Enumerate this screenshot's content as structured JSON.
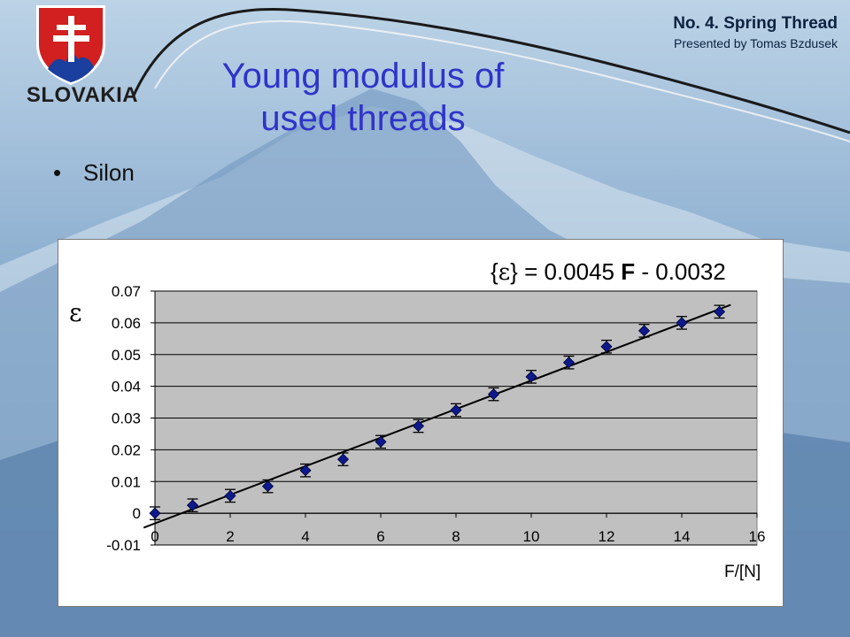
{
  "header": {
    "country": "SLOVAKIA",
    "talk_title": "No. 4. Spring Thread",
    "presenter": "Presented by Tomas Bzdusek"
  },
  "slide": {
    "title_line1": "Young modulus of",
    "title_line2": "used threads",
    "bullet_symbol": "•",
    "bullet": "Silon"
  },
  "colors": {
    "title": "#2f34c9",
    "plot_area": "#c0c0c0",
    "marker": "#0d1a8c",
    "fit_line": "#000000"
  },
  "chart_data": {
    "type": "scatter",
    "equation_parts": [
      "{",
      "ε",
      "} = 0.0045 ",
      "F",
      " - 0.0032"
    ],
    "ylabel": "ε",
    "xlabel": "F/[N]",
    "xlim": [
      0,
      16
    ],
    "ylim": [
      -0.01,
      0.07
    ],
    "x_ticks": [
      0,
      2,
      4,
      6,
      8,
      10,
      12,
      14,
      16
    ],
    "y_ticks": [
      -0.01,
      0,
      0.01,
      0.02,
      0.03,
      0.04,
      0.05,
      0.06,
      0.07
    ],
    "y_tick_labels": [
      "-0.01",
      "0",
      "0.01",
      "0.02",
      "0.03",
      "0.04",
      "0.05",
      "0.06",
      "0.07"
    ],
    "grid": "horizontal",
    "error_bar": 0.002,
    "fit": {
      "slope": 0.0045,
      "intercept": -0.0032
    },
    "series": [
      {
        "x": [
          0,
          1,
          2,
          3,
          4,
          5,
          6,
          7,
          8,
          9,
          10,
          11,
          12,
          13,
          14,
          15
        ],
        "y": [
          0.0,
          0.0025,
          0.0055,
          0.0085,
          0.0135,
          0.017,
          0.0225,
          0.0275,
          0.0325,
          0.0375,
          0.043,
          0.0475,
          0.0525,
          0.0575,
          0.06,
          0.0635
        ]
      }
    ]
  }
}
